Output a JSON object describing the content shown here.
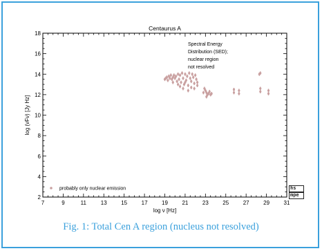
{
  "caption": "Fig. 1: Total Cen A region (nucleus not resolved)",
  "logo": {
    "line1": "hs",
    "line2": "mpe"
  },
  "colors": {
    "frame": "#3aa0dc",
    "caption": "#3aa0dc",
    "marker": "#c9a0a0",
    "axis": "#000000"
  },
  "chart_data": {
    "type": "scatter",
    "title": "Centaurus A",
    "xlabel": "log ν [Hz]",
    "ylabel": "log (νFν) [Jy Hz]",
    "xlim": [
      7,
      31
    ],
    "ylim": [
      2,
      18
    ],
    "xticks": [
      "7",
      "9",
      "11",
      "13",
      "15",
      "17",
      "19",
      "21",
      "23",
      "25",
      "27",
      "29",
      "31"
    ],
    "yticks": [
      "2",
      "4",
      "6",
      "8",
      "10",
      "12",
      "14",
      "16",
      "18"
    ],
    "annotation": [
      "Spectral Energy",
      "Distribution (SED);",
      "nuclear region",
      "not resolved"
    ],
    "legend": {
      "label": "probably only nuclear emission",
      "placement": "bottom-left"
    },
    "grid": false,
    "series": [
      {
        "name": "probably only nuclear emission",
        "points": [
          [
            19.0,
            13.5
          ],
          [
            19.1,
            13.6
          ],
          [
            19.2,
            13.7
          ],
          [
            19.3,
            13.4
          ],
          [
            19.4,
            13.8
          ],
          [
            19.5,
            13.6
          ],
          [
            19.6,
            13.9
          ],
          [
            19.7,
            13.5
          ],
          [
            19.8,
            13.7
          ],
          [
            19.9,
            13.9
          ],
          [
            20.0,
            13.6
          ],
          [
            20.1,
            13.8
          ],
          [
            20.2,
            13.3
          ],
          [
            20.3,
            14.0
          ],
          [
            20.4,
            13.5
          ],
          [
            20.5,
            13.9
          ],
          [
            20.6,
            13.2
          ],
          [
            20.7,
            14.1
          ],
          [
            20.8,
            13.6
          ],
          [
            20.9,
            13.0
          ],
          [
            21.0,
            14.0
          ],
          [
            21.1,
            13.4
          ],
          [
            21.2,
            13.8
          ],
          [
            21.3,
            12.9
          ],
          [
            21.4,
            14.1
          ],
          [
            21.5,
            13.6
          ],
          [
            21.6,
            13.3
          ],
          [
            21.7,
            14.0
          ],
          [
            21.8,
            13.7
          ],
          [
            21.9,
            13.1
          ],
          [
            22.0,
            13.9
          ],
          [
            22.1,
            13.5
          ],
          [
            22.2,
            13.2
          ],
          [
            20.5,
            12.8
          ],
          [
            20.8,
            12.6
          ],
          [
            21.0,
            13.2
          ],
          [
            21.3,
            12.4
          ],
          [
            21.6,
            12.7
          ],
          [
            20.3,
            13.0
          ],
          [
            19.8,
            13.2
          ],
          [
            21.9,
            12.6
          ],
          [
            22.2,
            12.9
          ],
          [
            22.9,
            12.6
          ],
          [
            23.0,
            12.4
          ],
          [
            23.1,
            12.2
          ],
          [
            23.2,
            12.0
          ],
          [
            23.3,
            12.1
          ],
          [
            23.4,
            12.3
          ],
          [
            23.5,
            12.0
          ],
          [
            23.6,
            12.1
          ],
          [
            23.1,
            11.8
          ],
          [
            22.8,
            12.2
          ],
          [
            25.8,
            12.5
          ],
          [
            25.8,
            12.2
          ],
          [
            26.3,
            12.4
          ],
          [
            26.3,
            12.1
          ],
          [
            28.3,
            14.0
          ],
          [
            28.4,
            14.1
          ],
          [
            28.4,
            12.6
          ],
          [
            28.4,
            12.3
          ],
          [
            29.2,
            12.4
          ],
          [
            29.2,
            12.1
          ]
        ]
      }
    ]
  }
}
